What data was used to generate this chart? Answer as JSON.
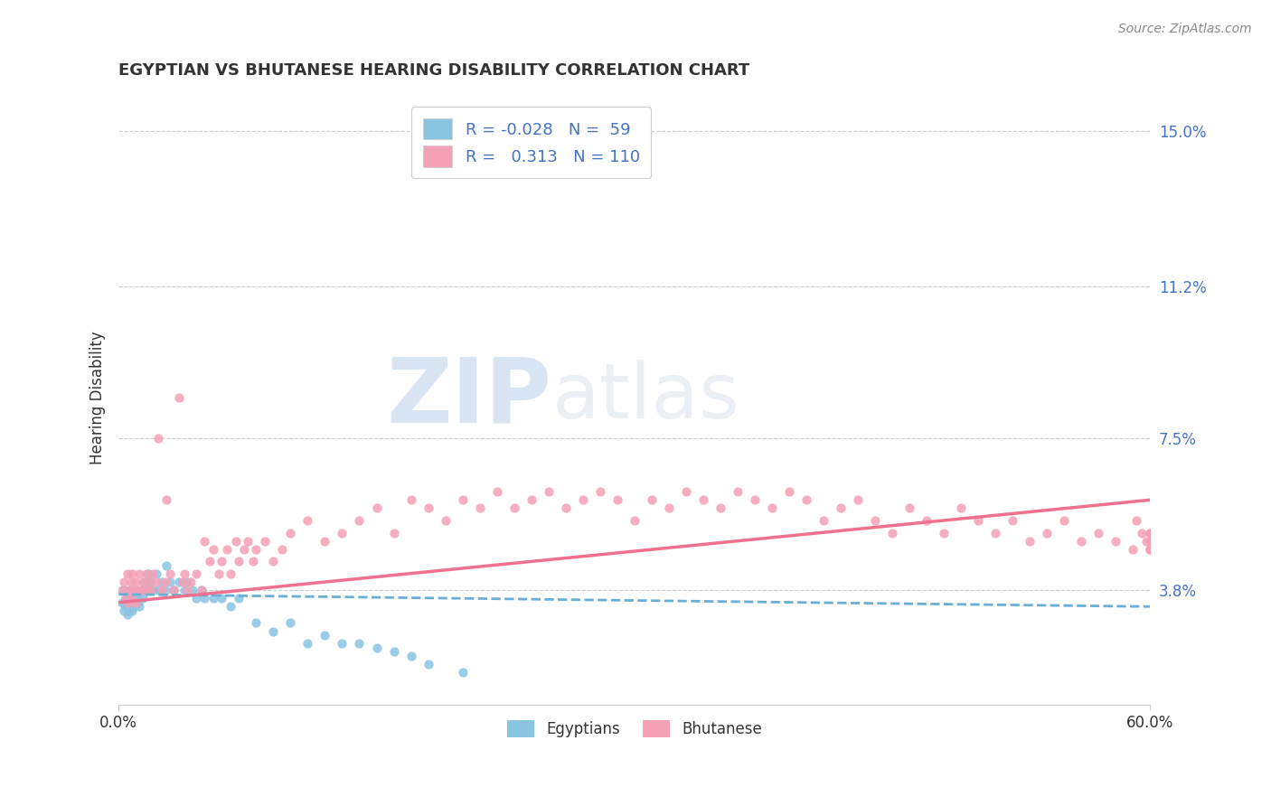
{
  "title": "EGYPTIAN VS BHUTANESE HEARING DISABILITY CORRELATION CHART",
  "source": "Source: ZipAtlas.com",
  "xlabel": "",
  "ylabel": "Hearing Disability",
  "xlim": [
    0.0,
    0.6
  ],
  "ylim": [
    0.01,
    0.16
  ],
  "xtick_labels": [
    "0.0%",
    "60.0%"
  ],
  "ytick_vals": [
    0.038,
    0.075,
    0.112,
    0.15
  ],
  "ytick_labels": [
    "3.8%",
    "7.5%",
    "11.2%",
    "15.0%"
  ],
  "egyptians_color": "#89c4e1",
  "bhutanese_color": "#f4a0b5",
  "egyptians_line_color": "#6aaed6",
  "bhutanese_line_color": "#f07090",
  "legend_R_egypt": "-0.028",
  "legend_N_egypt": "59",
  "legend_R_bhutan": "0.313",
  "legend_N_bhutan": "110",
  "watermark_zip": "ZIP",
  "watermark_atlas": "atlas",
  "bg_color": "#ffffff",
  "grid_color": "#cccccc",
  "title_color": "#333333",
  "ytick_color": "#4472c4",
  "xtick_color": "#333333",
  "egyptians_x": [
    0.002,
    0.003,
    0.003,
    0.004,
    0.004,
    0.005,
    0.005,
    0.006,
    0.006,
    0.007,
    0.007,
    0.008,
    0.008,
    0.009,
    0.009,
    0.01,
    0.01,
    0.011,
    0.011,
    0.012,
    0.012,
    0.013,
    0.014,
    0.015,
    0.016,
    0.017,
    0.018,
    0.019,
    0.02,
    0.022,
    0.023,
    0.025,
    0.027,
    0.028,
    0.03,
    0.032,
    0.035,
    0.038,
    0.04,
    0.043,
    0.045,
    0.048,
    0.05,
    0.055,
    0.06,
    0.065,
    0.07,
    0.08,
    0.09,
    0.1,
    0.11,
    0.12,
    0.13,
    0.14,
    0.15,
    0.16,
    0.17,
    0.18,
    0.2
  ],
  "egyptians_y": [
    0.035,
    0.033,
    0.038,
    0.034,
    0.036,
    0.032,
    0.037,
    0.033,
    0.038,
    0.034,
    0.036,
    0.033,
    0.035,
    0.036,
    0.034,
    0.037,
    0.038,
    0.035,
    0.036,
    0.034,
    0.037,
    0.038,
    0.036,
    0.04,
    0.038,
    0.042,
    0.038,
    0.04,
    0.038,
    0.042,
    0.038,
    0.04,
    0.038,
    0.044,
    0.04,
    0.038,
    0.04,
    0.038,
    0.04,
    0.038,
    0.036,
    0.038,
    0.036,
    0.036,
    0.036,
    0.034,
    0.036,
    0.03,
    0.028,
    0.03,
    0.025,
    0.027,
    0.025,
    0.025,
    0.024,
    0.023,
    0.022,
    0.02,
    0.018
  ],
  "bhutanese_x": [
    0.002,
    0.003,
    0.004,
    0.005,
    0.005,
    0.006,
    0.007,
    0.007,
    0.008,
    0.009,
    0.01,
    0.01,
    0.011,
    0.012,
    0.013,
    0.014,
    0.015,
    0.016,
    0.017,
    0.018,
    0.019,
    0.02,
    0.022,
    0.023,
    0.025,
    0.027,
    0.028,
    0.03,
    0.032,
    0.035,
    0.037,
    0.038,
    0.04,
    0.042,
    0.045,
    0.048,
    0.05,
    0.053,
    0.055,
    0.058,
    0.06,
    0.063,
    0.065,
    0.068,
    0.07,
    0.073,
    0.075,
    0.078,
    0.08,
    0.085,
    0.09,
    0.095,
    0.1,
    0.11,
    0.12,
    0.13,
    0.14,
    0.15,
    0.16,
    0.17,
    0.18,
    0.19,
    0.2,
    0.21,
    0.22,
    0.23,
    0.24,
    0.25,
    0.26,
    0.27,
    0.28,
    0.29,
    0.3,
    0.31,
    0.32,
    0.33,
    0.34,
    0.35,
    0.36,
    0.37,
    0.38,
    0.39,
    0.4,
    0.41,
    0.42,
    0.43,
    0.44,
    0.45,
    0.46,
    0.47,
    0.48,
    0.49,
    0.5,
    0.51,
    0.52,
    0.53,
    0.54,
    0.55,
    0.56,
    0.57,
    0.58,
    0.59,
    0.592,
    0.595,
    0.598,
    0.6,
    0.6,
    0.6,
    0.6,
    0.6
  ],
  "bhutanese_y": [
    0.038,
    0.04,
    0.036,
    0.042,
    0.035,
    0.038,
    0.04,
    0.036,
    0.042,
    0.038,
    0.035,
    0.04,
    0.038,
    0.042,
    0.038,
    0.04,
    0.038,
    0.042,
    0.038,
    0.04,
    0.038,
    0.042,
    0.04,
    0.075,
    0.038,
    0.04,
    0.06,
    0.042,
    0.038,
    0.085,
    0.04,
    0.042,
    0.038,
    0.04,
    0.042,
    0.038,
    0.05,
    0.045,
    0.048,
    0.042,
    0.045,
    0.048,
    0.042,
    0.05,
    0.045,
    0.048,
    0.05,
    0.045,
    0.048,
    0.05,
    0.045,
    0.048,
    0.052,
    0.055,
    0.05,
    0.052,
    0.055,
    0.058,
    0.052,
    0.06,
    0.058,
    0.055,
    0.06,
    0.058,
    0.062,
    0.058,
    0.06,
    0.062,
    0.058,
    0.06,
    0.062,
    0.06,
    0.055,
    0.06,
    0.058,
    0.062,
    0.06,
    0.058,
    0.062,
    0.06,
    0.058,
    0.062,
    0.06,
    0.055,
    0.058,
    0.06,
    0.055,
    0.052,
    0.058,
    0.055,
    0.052,
    0.058,
    0.055,
    0.052,
    0.055,
    0.05,
    0.052,
    0.055,
    0.05,
    0.052,
    0.05,
    0.048,
    0.055,
    0.052,
    0.05,
    0.048,
    0.052,
    0.05,
    0.048,
    0.052
  ]
}
